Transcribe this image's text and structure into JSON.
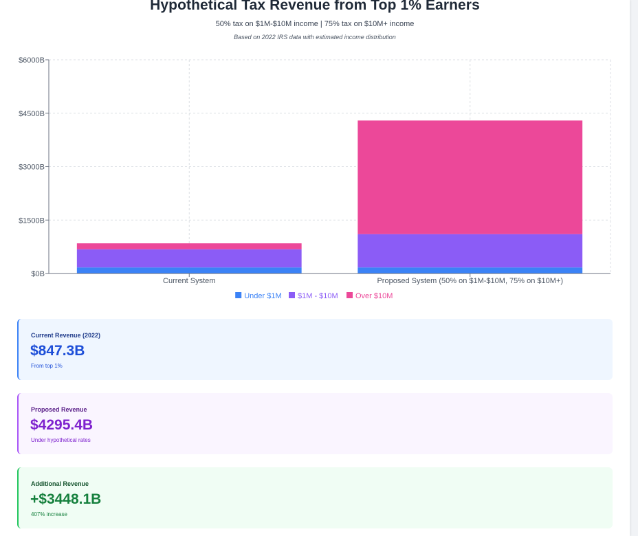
{
  "header": {
    "title": "Hypothetical Tax Revenue from Top 1% Earners",
    "subtitle": "50% tax on $1M-$10M income | 75% tax on $10M+ income",
    "note": "Based on 2022 IRS data with estimated income distribution"
  },
  "chart_data": {
    "type": "bar",
    "stacked": true,
    "categories": [
      "Current System",
      "Proposed System (50% on $1M-$10M, 75% on $10M+)"
    ],
    "series": [
      {
        "name": "Under $1M",
        "color": "#3b82f6",
        "values": [
          170,
          170
        ]
      },
      {
        "name": "$1M - $10M",
        "color": "#8b5cf6",
        "values": [
          510,
          935
        ]
      },
      {
        "name": "Over $10M",
        "color": "#ec4899",
        "values": [
          167,
          3190
        ]
      }
    ],
    "ylim": [
      0,
      6000
    ],
    "yticks": [
      0,
      1500,
      3000,
      4500,
      6000
    ],
    "ytick_labels": [
      "$0B",
      "$1500B",
      "$3000B",
      "$4500B",
      "$6000B"
    ],
    "grid": true,
    "legend": "bottom"
  },
  "cards": {
    "current": {
      "label": "Current Revenue (2022)",
      "value": "$847.3B",
      "sub": "From top 1%"
    },
    "proposed": {
      "label": "Proposed Revenue",
      "value": "$4295.4B",
      "sub": "Under hypothetical rates"
    },
    "additional": {
      "label": "Additional Revenue",
      "value": "+$3448.1B",
      "sub": "407% increase"
    }
  }
}
